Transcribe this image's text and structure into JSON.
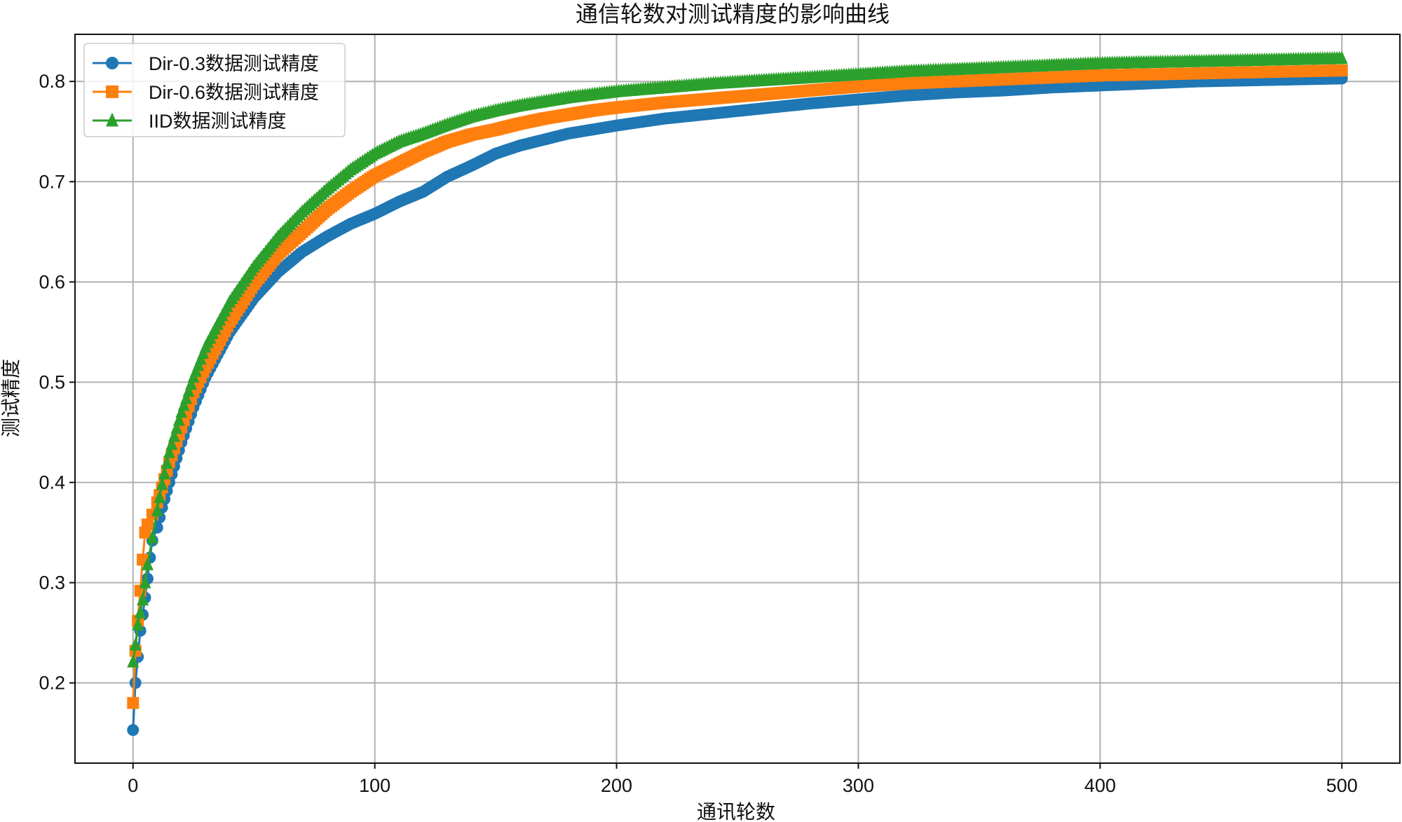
{
  "chart_data": {
    "type": "line",
    "title": "通信轮数对测试精度的影响曲线",
    "xlabel": "通讯轮数",
    "ylabel": "测试精度",
    "xlim": [
      -24,
      524
    ],
    "ylim": [
      0.12,
      0.847
    ],
    "x_ticks": [
      0,
      100,
      200,
      300,
      400,
      500
    ],
    "y_ticks": [
      0.2,
      0.3,
      0.4,
      0.5,
      0.6,
      0.7,
      0.8
    ],
    "grid": true,
    "legend_position": "top-left",
    "series": [
      {
        "name": "Dir-0.3数据测试精度",
        "color": "#1f77b4",
        "marker": "circle",
        "points": [
          [
            0,
            0.153
          ],
          [
            1,
            0.2
          ],
          [
            2,
            0.226
          ],
          [
            3,
            0.252
          ],
          [
            4,
            0.268
          ],
          [
            5,
            0.285
          ],
          [
            6,
            0.304
          ],
          [
            7,
            0.325
          ],
          [
            8,
            0.342
          ],
          [
            10,
            0.355
          ],
          [
            12,
            0.375
          ],
          [
            15,
            0.4
          ],
          [
            20,
            0.44
          ],
          [
            25,
            0.475
          ],
          [
            30,
            0.505
          ],
          [
            40,
            0.55
          ],
          [
            50,
            0.584
          ],
          [
            60,
            0.61
          ],
          [
            70,
            0.63
          ],
          [
            80,
            0.645
          ],
          [
            90,
            0.658
          ],
          [
            100,
            0.668
          ],
          [
            110,
            0.68
          ],
          [
            120,
            0.69
          ],
          [
            130,
            0.705
          ],
          [
            140,
            0.716
          ],
          [
            150,
            0.728
          ],
          [
            160,
            0.736
          ],
          [
            170,
            0.742
          ],
          [
            180,
            0.748
          ],
          [
            190,
            0.752
          ],
          [
            200,
            0.756
          ],
          [
            220,
            0.763
          ],
          [
            240,
            0.768
          ],
          [
            260,
            0.773
          ],
          [
            280,
            0.778
          ],
          [
            300,
            0.782
          ],
          [
            320,
            0.786
          ],
          [
            340,
            0.789
          ],
          [
            360,
            0.791
          ],
          [
            380,
            0.794
          ],
          [
            400,
            0.796
          ],
          [
            420,
            0.798
          ],
          [
            440,
            0.8
          ],
          [
            460,
            0.801
          ],
          [
            480,
            0.802
          ],
          [
            500,
            0.803
          ]
        ]
      },
      {
        "name": "Dir-0.6数据测试精度",
        "color": "#ff7f0e",
        "marker": "square",
        "points": [
          [
            0,
            0.18
          ],
          [
            1,
            0.232
          ],
          [
            2,
            0.262
          ],
          [
            3,
            0.292
          ],
          [
            4,
            0.323
          ],
          [
            5,
            0.35
          ],
          [
            6,
            0.358
          ],
          [
            8,
            0.368
          ],
          [
            10,
            0.38
          ],
          [
            12,
            0.395
          ],
          [
            15,
            0.42
          ],
          [
            20,
            0.455
          ],
          [
            25,
            0.49
          ],
          [
            30,
            0.515
          ],
          [
            40,
            0.56
          ],
          [
            50,
            0.598
          ],
          [
            60,
            0.628
          ],
          [
            70,
            0.65
          ],
          [
            80,
            0.672
          ],
          [
            90,
            0.69
          ],
          [
            100,
            0.706
          ],
          [
            110,
            0.718
          ],
          [
            120,
            0.73
          ],
          [
            130,
            0.74
          ],
          [
            140,
            0.747
          ],
          [
            150,
            0.752
          ],
          [
            160,
            0.758
          ],
          [
            170,
            0.763
          ],
          [
            180,
            0.767
          ],
          [
            190,
            0.771
          ],
          [
            200,
            0.774
          ],
          [
            220,
            0.779
          ],
          [
            240,
            0.783
          ],
          [
            260,
            0.787
          ],
          [
            280,
            0.791
          ],
          [
            300,
            0.795
          ],
          [
            320,
            0.798
          ],
          [
            340,
            0.8
          ],
          [
            360,
            0.802
          ],
          [
            380,
            0.804
          ],
          [
            400,
            0.806
          ],
          [
            420,
            0.807
          ],
          [
            440,
            0.808
          ],
          [
            460,
            0.809
          ],
          [
            480,
            0.81
          ],
          [
            500,
            0.811
          ]
        ]
      },
      {
        "name": "IID数据测试精度",
        "color": "#2ca02c",
        "marker": "triangle",
        "points": [
          [
            0,
            0.221
          ],
          [
            1,
            0.238
          ],
          [
            2,
            0.258
          ],
          [
            3,
            0.27
          ],
          [
            4,
            0.283
          ],
          [
            5,
            0.3
          ],
          [
            6,
            0.318
          ],
          [
            8,
            0.345
          ],
          [
            10,
            0.372
          ],
          [
            12,
            0.398
          ],
          [
            15,
            0.43
          ],
          [
            20,
            0.47
          ],
          [
            25,
            0.505
          ],
          [
            30,
            0.535
          ],
          [
            40,
            0.58
          ],
          [
            50,
            0.615
          ],
          [
            60,
            0.645
          ],
          [
            70,
            0.67
          ],
          [
            80,
            0.692
          ],
          [
            90,
            0.712
          ],
          [
            100,
            0.728
          ],
          [
            110,
            0.74
          ],
          [
            120,
            0.748
          ],
          [
            130,
            0.757
          ],
          [
            140,
            0.765
          ],
          [
            150,
            0.771
          ],
          [
            160,
            0.776
          ],
          [
            170,
            0.78
          ],
          [
            180,
            0.784
          ],
          [
            190,
            0.787
          ],
          [
            200,
            0.79
          ],
          [
            220,
            0.794
          ],
          [
            240,
            0.798
          ],
          [
            260,
            0.801
          ],
          [
            280,
            0.804
          ],
          [
            300,
            0.807
          ],
          [
            320,
            0.81
          ],
          [
            340,
            0.812
          ],
          [
            360,
            0.814
          ],
          [
            380,
            0.816
          ],
          [
            400,
            0.818
          ],
          [
            420,
            0.819
          ],
          [
            440,
            0.82
          ],
          [
            460,
            0.821
          ],
          [
            480,
            0.822
          ],
          [
            500,
            0.823
          ]
        ]
      }
    ]
  }
}
